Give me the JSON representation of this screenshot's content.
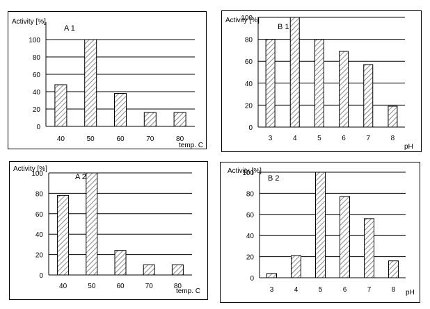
{
  "charts": {
    "a1": {
      "ylabel": "Activity [%]",
      "title": "A 1",
      "xunit": "temp. C"
    },
    "b1": {
      "ylabel": "Activity [%]",
      "title": "B 1",
      "xunit": "pH"
    },
    "a2": {
      "ylabel": "Activity [%]",
      "title": "A 2",
      "xunit": "temp. C"
    },
    "b2": {
      "ylabel": "Activity [%]",
      "title": "B 2",
      "xunit": "pH"
    }
  },
  "colors": {
    "bar_fill": "#ffffff",
    "hatch": "#888888",
    "axis": "#000000",
    "grid": "#000000"
  },
  "chart_data": [
    {
      "id": "a1",
      "type": "bar",
      "title": "A 1",
      "ylabel": "Activity [%]",
      "xlabel": "temp. C",
      "categories": [
        "40",
        "50",
        "60",
        "70",
        "80"
      ],
      "values": [
        48,
        100,
        38,
        16,
        16
      ],
      "ylim": [
        0,
        120
      ],
      "yticks": [
        0,
        20,
        40,
        60,
        80,
        100
      ],
      "grid": true,
      "bar_pattern": "diagonal-hatch"
    },
    {
      "id": "b1",
      "type": "bar",
      "title": "B 1",
      "ylabel": "Activity [%]",
      "xlabel": "pH",
      "categories": [
        "3",
        "4",
        "5",
        "6",
        "7",
        "8"
      ],
      "values": [
        80,
        100,
        80,
        69,
        57,
        19
      ],
      "ylim": [
        0,
        100
      ],
      "yticks": [
        0,
        20,
        40,
        60,
        80,
        100
      ],
      "grid": true,
      "bar_pattern": "diagonal-hatch"
    },
    {
      "id": "a2",
      "type": "bar",
      "title": "A 2",
      "ylabel": "Activity [%]",
      "xlabel": "temp. C",
      "categories": [
        "40",
        "50",
        "60",
        "70",
        "80"
      ],
      "values": [
        78,
        100,
        24,
        10,
        10
      ],
      "ylim": [
        0,
        100
      ],
      "yticks": [
        0,
        20,
        40,
        60,
        80,
        100
      ],
      "grid": true,
      "bar_pattern": "diagonal-hatch"
    },
    {
      "id": "b2",
      "type": "bar",
      "title": "B 2",
      "ylabel": "Activity [%]",
      "xlabel": "pH",
      "categories": [
        "3",
        "4",
        "5",
        "6",
        "7",
        "8"
      ],
      "values": [
        4,
        21,
        100,
        77,
        56,
        16
      ],
      "ylim": [
        0,
        100
      ],
      "yticks": [
        0,
        20,
        40,
        60,
        80,
        100
      ],
      "grid": true,
      "bar_pattern": "diagonal-hatch"
    }
  ]
}
